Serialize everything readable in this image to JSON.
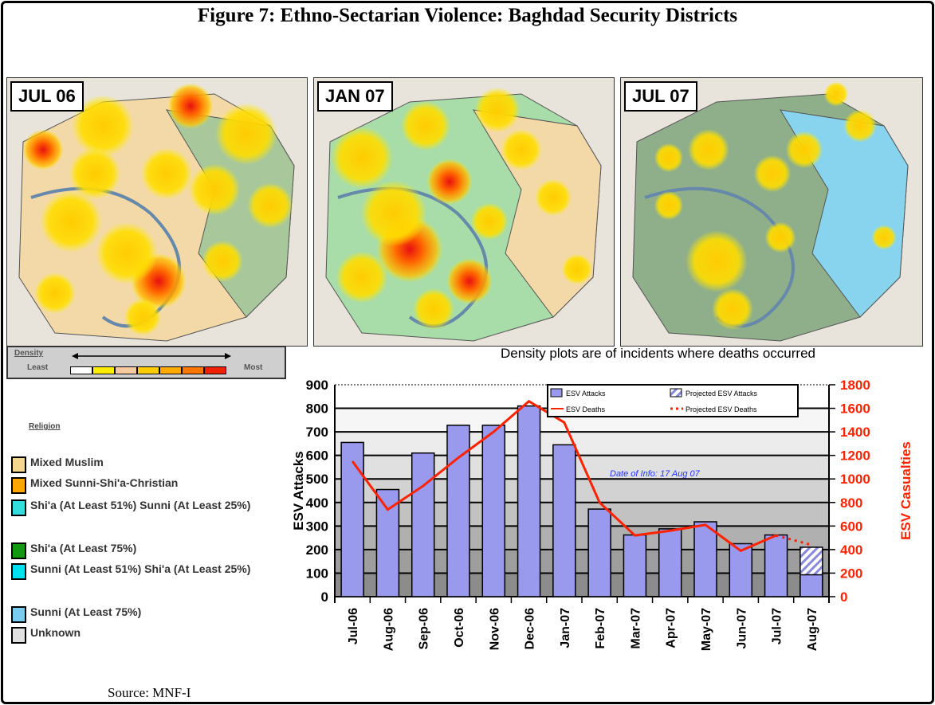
{
  "title": "Figure 7: Ethno-Sectarian Violence: Baghdad Security Districts",
  "maps": [
    {
      "label": "JUL 06"
    },
    {
      "label": "JAN 07"
    },
    {
      "label": "JUL 07"
    }
  ],
  "density_legend": {
    "title": "Density",
    "least": "Least",
    "most": "Most",
    "colors": [
      "#ffffff",
      "#ffee00",
      "#f8c8a0",
      "#ffcc00",
      "#ffaa00",
      "#ff7700",
      "#ee2200"
    ]
  },
  "density_note": "Density plots are of incidents where deaths occurred",
  "religion_legend": {
    "title": "Religion",
    "items": [
      {
        "label": "Mixed Muslim",
        "color": "#f6d58e"
      },
      {
        "label": "Mixed Sunni-Shi'a-Christian",
        "color": "#ffa500"
      },
      {
        "label": "Shi'a (At Least 51%) Sunni (At Least 25%)",
        "color": "#33dddd"
      },
      {
        "label": "Shi'a (At Least 75%)",
        "color": "#119911"
      },
      {
        "label": "Sunni (At Least 51%) Shi'a (At Least 25%)",
        "color": "#00e0f0"
      },
      {
        "label": "Sunni (At Least 75%)",
        "color": "#77ccf0"
      },
      {
        "label": "Unknown",
        "color": "#e0e0e0"
      }
    ]
  },
  "source": "Source: MNF-I",
  "chart_data": {
    "type": "bar",
    "categories": [
      "Jul-06",
      "Aug-06",
      "Sep-06",
      "Oct-06",
      "Nov-06",
      "Dec-06",
      "Jan-07",
      "Feb-07",
      "Mar-07",
      "Apr-07",
      "May-07",
      "Jun-07",
      "Jul-07",
      "Aug-07"
    ],
    "series": [
      {
        "name": "ESV Attacks",
        "type": "bar",
        "axis": "left",
        "color": "#9999ee",
        "values": [
          655,
          455,
          610,
          728,
          728,
          810,
          645,
          372,
          262,
          288,
          318,
          225,
          262,
          93
        ]
      },
      {
        "name": "Projected ESV Attacks",
        "type": "bar-hatched",
        "axis": "left",
        "values": [
          null,
          null,
          null,
          null,
          null,
          null,
          null,
          null,
          null,
          null,
          null,
          null,
          null,
          210
        ]
      },
      {
        "name": "ESV Deaths",
        "type": "line",
        "axis": "right",
        "color": "#ff2200",
        "values": [
          1150,
          740,
          940,
          1180,
          1400,
          1660,
          1480,
          800,
          520,
          560,
          610,
          390,
          520,
          null
        ]
      },
      {
        "name": "Projected ESV Deaths",
        "type": "dotted-line",
        "axis": "right",
        "color": "#ff2200",
        "values": [
          null,
          null,
          null,
          null,
          null,
          null,
          null,
          null,
          null,
          null,
          null,
          null,
          520,
          440
        ]
      }
    ],
    "ylabel": "ESV Attacks",
    "ylim": [
      0,
      900
    ],
    "yticks": [
      0,
      100,
      200,
      300,
      400,
      500,
      600,
      700,
      800,
      900
    ],
    "y2label": "ESV Casualties",
    "y2lim": [
      0,
      1800
    ],
    "y2ticks": [
      0,
      200,
      400,
      600,
      800,
      1000,
      1200,
      1400,
      1600,
      1800
    ],
    "annotation": "Date of Info: 17 Aug 07",
    "legend": "top-right",
    "grid": true
  }
}
